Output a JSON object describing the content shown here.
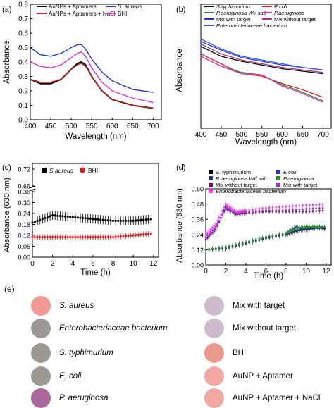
{
  "chart_data": [
    {
      "panel": "(a)",
      "type": "line",
      "xlabel": "Wavelength (nm)",
      "ylabel": "Absorbance",
      "xlim": [
        400,
        720
      ],
      "ylim": [
        0.0,
        0.8
      ],
      "xticks": [
        "400",
        "450",
        "500",
        "550",
        "600",
        "650",
        "700"
      ],
      "yticks": [
        "0.0",
        "0.1",
        "0.2",
        "0.3",
        "0.4",
        "0.5",
        "0.6",
        "0.7",
        "0.8"
      ],
      "legend": [
        "AuNPs + Aptamers",
        "AuNPs + Aptamers + NaCl",
        "S. aureus",
        "BHI"
      ],
      "legend_italic": [
        false,
        false,
        true,
        false
      ],
      "colors": [
        "#000000",
        "#cc2222",
        "#2233cc",
        "#dd33cc"
      ],
      "x": [
        400,
        425,
        450,
        475,
        500,
        515,
        525,
        535,
        550,
        575,
        600,
        650,
        700
      ],
      "series": [
        {
          "name": "AuNPs + Aptamers",
          "values": [
            0.28,
            0.25,
            0.25,
            0.28,
            0.35,
            0.39,
            0.4,
            0.38,
            0.3,
            0.2,
            0.14,
            0.1,
            0.08
          ]
        },
        {
          "name": "AuNPs + Aptamers + NaCl",
          "values": [
            0.28,
            0.26,
            0.26,
            0.28,
            0.35,
            0.38,
            0.39,
            0.37,
            0.3,
            0.2,
            0.14,
            0.1,
            0.08
          ]
        },
        {
          "name": "S. aureus",
          "values": [
            0.5,
            0.45,
            0.44,
            0.46,
            0.5,
            0.52,
            0.52,
            0.49,
            0.42,
            0.33,
            0.27,
            0.21,
            0.19
          ]
        },
        {
          "name": "BHI",
          "values": [
            0.4,
            0.37,
            0.36,
            0.38,
            0.43,
            0.46,
            0.47,
            0.44,
            0.36,
            0.26,
            0.2,
            0.15,
            0.12
          ]
        }
      ]
    },
    {
      "panel": "(b)",
      "type": "line",
      "xlabel": "Wavelength (nm)",
      "ylabel": "Absorbance",
      "xlim": [
        400,
        720
      ],
      "ylim": [
        0.0,
        1.0
      ],
      "xticks": [
        "400",
        "450",
        "500",
        "550",
        "600",
        "650",
        "700"
      ],
      "legend": [
        "S.typhimurium",
        "E.coli",
        "P.aeruginosa Wt/ salt",
        "P.aeruginosa",
        "Mix with target",
        "Mix without target",
        "Enterobacteriaceae bacterium"
      ],
      "legend_italic": [
        true,
        true,
        true,
        true,
        false,
        false,
        true
      ],
      "colors": [
        "#000000",
        "#dd2222",
        "#2b8a2b",
        "#dd33cc",
        "#2233cc",
        "#aa3388",
        "#3355ee"
      ],
      "x": [
        400,
        450,
        500,
        550,
        600,
        650,
        700
      ],
      "series": [
        {
          "name": "S.typhimurium",
          "values": [
            0.66,
            0.58,
            0.54,
            0.51,
            0.48,
            0.46,
            0.44
          ]
        },
        {
          "name": "E.coli",
          "values": [
            0.6,
            0.52,
            0.44,
            0.42,
            0.36,
            0.31,
            0.25
          ]
        },
        {
          "name": "P.aeruginosa Wt/ salt",
          "values": [
            0.58,
            0.5,
            0.45,
            0.43,
            0.35,
            0.29,
            0.22
          ]
        },
        {
          "name": "P.aeruginosa",
          "values": [
            0.58,
            0.5,
            0.44,
            0.43,
            0.34,
            0.28,
            0.21
          ]
        },
        {
          "name": "Mix with target",
          "values": [
            0.7,
            0.63,
            0.57,
            0.54,
            0.51,
            0.49,
            0.47
          ]
        },
        {
          "name": "Mix without target",
          "values": [
            0.68,
            0.6,
            0.55,
            0.52,
            0.49,
            0.47,
            0.45
          ]
        },
        {
          "name": "Enterobacteriaceae bacterium",
          "values": [
            0.72,
            0.64,
            0.58,
            0.55,
            0.52,
            0.49,
            0.47
          ]
        }
      ]
    },
    {
      "panel": "(c)",
      "type": "scatter",
      "xlabel": "Time (h)",
      "ylabel": "Absorbance (630 nm)",
      "xlim": [
        0,
        12.5
      ],
      "xticks": [
        "0",
        "2",
        "4",
        "6",
        "8",
        "10",
        "12"
      ],
      "yticks": [
        "0.00",
        "0.06",
        "0.12",
        "0.18",
        "0.24",
        "0.30",
        "0.36",
        "0.66",
        "0.72"
      ],
      "axis_break": "0.36-0.66",
      "legend": [
        "S.aureus",
        "BHI"
      ],
      "legend_italic": [
        true,
        false
      ],
      "colors": [
        "#000000",
        "#dd2222"
      ],
      "series": [
        {
          "name": "S.aureus",
          "x": [
            0,
            2,
            4,
            6,
            8,
            10,
            12
          ],
          "values": [
            0.19,
            0.23,
            0.22,
            0.21,
            0.2,
            0.2,
            0.21
          ],
          "error": 0.025
        },
        {
          "name": "BHI",
          "x": [
            0,
            2,
            4,
            6,
            8,
            10,
            12
          ],
          "values": [
            0.11,
            0.11,
            0.11,
            0.11,
            0.11,
            0.12,
            0.13
          ],
          "error": 0.015
        }
      ]
    },
    {
      "panel": "(d)",
      "type": "scatter",
      "xlabel": "Time (h)",
      "ylabel": "Absorbance (630 nm)",
      "xlim": [
        0,
        12.5
      ],
      "ylim": [
        0.0,
        0.6
      ],
      "xticks": [
        "0",
        "2",
        "4",
        "6",
        "8",
        "10",
        "12"
      ],
      "yticks": [
        "0.00",
        "0.12",
        "0.24",
        "0.36",
        "0.48",
        "0.60"
      ],
      "legend": [
        "S. typhimurium",
        "E.coli",
        "P. aeruginosa Wt/ salt",
        "P.aeruginosa",
        "Mix without target",
        "Mix with target",
        "Enterobacteriaceae bacterium"
      ],
      "legend_italic": [
        false,
        true,
        true,
        true,
        false,
        false,
        true
      ],
      "colors": [
        "#000000",
        "#2233cc",
        "#223366",
        "#2b8a2b",
        "#661166",
        "#9933cc",
        "#ee44ee"
      ],
      "series": [
        {
          "name": "S. typhimurium",
          "x": [
            0,
            2,
            4,
            6,
            8,
            9,
            10,
            11,
            12
          ],
          "values": [
            0.12,
            0.13,
            0.17,
            0.21,
            0.24,
            0.27,
            0.29,
            0.3,
            0.29
          ]
        },
        {
          "name": "E.coli",
          "x": [
            0,
            2,
            4,
            6,
            8,
            9,
            10,
            11,
            12
          ],
          "values": [
            0.12,
            0.14,
            0.18,
            0.22,
            0.25,
            0.3,
            0.28,
            0.3,
            0.28
          ]
        },
        {
          "name": "P. aeruginosa Wt/ salt",
          "x": [
            0,
            2,
            4,
            6,
            8,
            9,
            10,
            11,
            12
          ],
          "values": [
            0.12,
            0.13,
            0.17,
            0.21,
            0.24,
            0.27,
            0.28,
            0.29,
            0.29
          ]
        },
        {
          "name": "P.aeruginosa",
          "x": [
            0,
            2,
            4,
            6,
            8,
            9,
            10,
            11,
            12
          ],
          "values": [
            0.12,
            0.14,
            0.18,
            0.22,
            0.25,
            0.29,
            0.3,
            0.3,
            0.3
          ]
        },
        {
          "name": "Mix without target",
          "x": [
            0,
            1,
            2,
            3,
            4,
            6,
            8,
            10,
            12
          ],
          "values": [
            0.2,
            0.28,
            0.46,
            0.4,
            0.41,
            0.42,
            0.42,
            0.42,
            0.43
          ]
        },
        {
          "name": "Mix with target",
          "x": [
            0,
            1,
            2,
            3,
            4,
            6,
            8,
            10,
            12
          ],
          "values": [
            0.22,
            0.3,
            0.44,
            0.41,
            0.42,
            0.43,
            0.43,
            0.44,
            0.45
          ]
        },
        {
          "name": "Enterobacteriaceae bacterium",
          "x": [
            0,
            1,
            2,
            3,
            4,
            6,
            8,
            10,
            12
          ],
          "values": [
            0.24,
            0.32,
            0.48,
            0.42,
            0.43,
            0.45,
            0.46,
            0.47,
            0.48
          ]
        }
      ]
    }
  ],
  "panel_e": {
    "tag": "(e)",
    "left": [
      {
        "label": "S. aureus",
        "color": "#ef9a92",
        "italic": true
      },
      {
        "label": "Enterobacteriaceae bacterium",
        "color": "#9c9995",
        "italic": true
      },
      {
        "label": "S. typhimurium",
        "color": "#9c9995",
        "italic": true
      },
      {
        "label": "E. coli",
        "color": "#9c9995",
        "italic": true
      },
      {
        "label": "P. aeruginosa",
        "color": "#a8689e",
        "italic": true
      }
    ],
    "right": [
      {
        "label": "Mix with target",
        "color": "#ccbccb",
        "italic": false
      },
      {
        "label": "Mix without target",
        "color": "#ccbccb",
        "italic": false
      },
      {
        "label": "BHI",
        "color": "#eb9a90",
        "italic": false
      },
      {
        "label": "AuNP + Aptamer",
        "color": "#f0a8a0",
        "italic": false
      },
      {
        "label": "AuNP + Aptamer + NaCl",
        "color": "#f0a8a0",
        "italic": false
      }
    ]
  }
}
